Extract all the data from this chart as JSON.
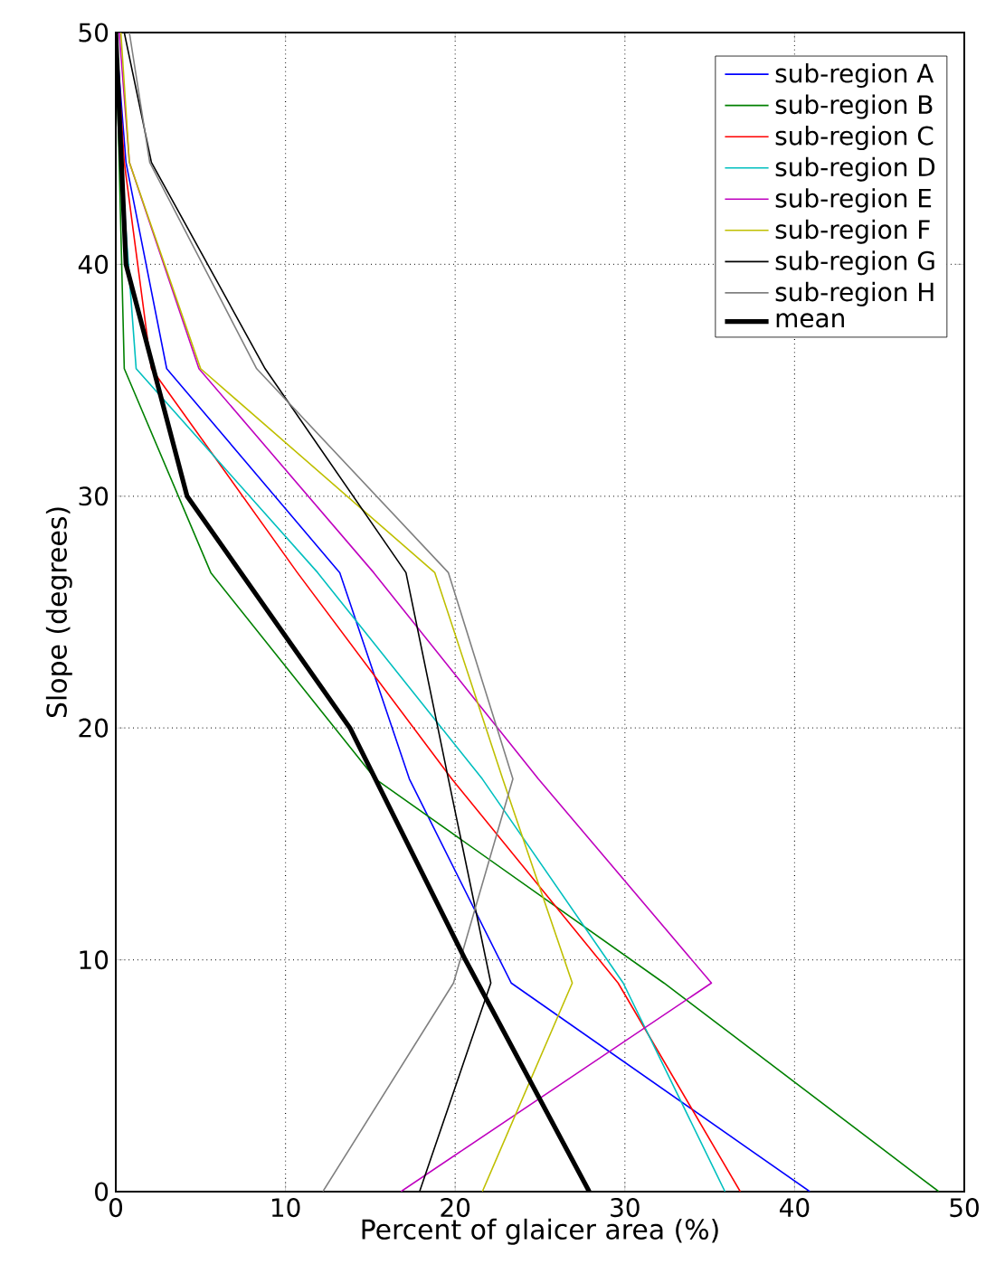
{
  "chart_data": {
    "type": "line",
    "xlabel": "Percent of glaicer area (%)",
    "ylabel": "Slope (degrees)",
    "xlim": [
      0,
      50
    ],
    "ylim": [
      0,
      50
    ],
    "xticks": [
      0,
      10,
      20,
      30,
      40,
      50
    ],
    "yticks": [
      0,
      10,
      20,
      30,
      40,
      50
    ],
    "grid": true,
    "legend": "top right",
    "line_style": "solid",
    "marker": "none",
    "series": [
      {
        "name": "sub-region A",
        "color": "#0000ff",
        "x": [
          40.9,
          23.3,
          17.3,
          13.2,
          3.0,
          0.6,
          0
        ],
        "values": [
          0,
          9,
          17.8,
          26.7,
          35.5,
          44.4,
          50
        ]
      },
      {
        "name": "sub-region B",
        "color": "#008000",
        "x": [
          48.5,
          32.3,
          15.3,
          5.6,
          0.5,
          0.2,
          0
        ],
        "values": [
          0,
          9,
          17.8,
          26.7,
          35.5,
          44.4,
          50
        ]
      },
      {
        "name": "sub-region C",
        "color": "#ff0000",
        "x": [
          36.8,
          29.6,
          19.8,
          10.7,
          2.1,
          0.5,
          0
        ],
        "values": [
          0,
          9,
          17.8,
          26.7,
          35.5,
          44.4,
          50
        ]
      },
      {
        "name": "sub-region D",
        "color": "#00bfbf",
        "x": [
          35.9,
          29.9,
          21.6,
          11.9,
          1.2,
          0.3,
          0
        ],
        "values": [
          0,
          9,
          17.8,
          26.7,
          35.5,
          44.4,
          50
        ]
      },
      {
        "name": "sub-region E",
        "color": "#bf00bf",
        "x": [
          16.8,
          35.1,
          24.9,
          15.2,
          4.9,
          0.8,
          0.2
        ],
        "values": [
          0,
          9,
          17.8,
          26.7,
          35.5,
          44.4,
          50
        ]
      },
      {
        "name": "sub-region F",
        "color": "#bfbf00",
        "x": [
          21.6,
          26.9,
          22.8,
          18.8,
          5.0,
          0.8,
          0.3
        ],
        "values": [
          0,
          9,
          17.8,
          26.7,
          35.5,
          44.4,
          50
        ]
      },
      {
        "name": "sub-region G",
        "color": "#000000",
        "x": [
          17.9,
          22.1,
          19.6,
          17.1,
          8.8,
          2.1,
          0.5
        ],
        "values": [
          0,
          9,
          17.8,
          26.7,
          35.5,
          44.4,
          50
        ]
      },
      {
        "name": "sub-region H",
        "color": "#808080",
        "x": [
          12.2,
          19.9,
          23.4,
          19.6,
          8.3,
          2.0,
          0.8
        ],
        "values": [
          0,
          9,
          17.8,
          26.7,
          35.5,
          44.4,
          50
        ]
      },
      {
        "name": "mean",
        "color": "#000000",
        "x": [
          27.9,
          20.6,
          13.8,
          4.2,
          0.6,
          0
        ],
        "values": [
          0,
          10,
          20,
          30,
          40,
          50
        ]
      }
    ]
  }
}
